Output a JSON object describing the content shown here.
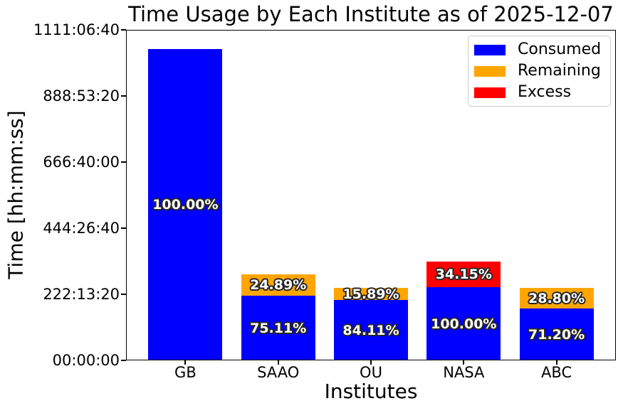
{
  "title": "Time Usage by Each Institute as of 2025-12-07",
  "axes": {
    "ylabel": "Time [hh:mm:ss]",
    "xlabel": "Institutes",
    "ylim_seconds": [
      0,
      4000000
    ],
    "yticks": [
      {
        "seconds": 0,
        "label": "00:00:00"
      },
      {
        "seconds": 800000,
        "label": "222:13:20"
      },
      {
        "seconds": 1600000,
        "label": "444:26:40"
      },
      {
        "seconds": 2400000,
        "label": "666:40:00"
      },
      {
        "seconds": 3200000,
        "label": "888:53:20"
      },
      {
        "seconds": 4000000,
        "label": "1111:06:40"
      }
    ]
  },
  "legend": {
    "position": "upper-right",
    "entries": [
      {
        "label": "Consumed",
        "color": "#0000ff"
      },
      {
        "label": "Remaining",
        "color": "#ffa500"
      },
      {
        "label": "Excess",
        "color": "#ff0000"
      }
    ]
  },
  "chart_data": {
    "type": "bar",
    "stacked": true,
    "grid": false,
    "categories": [
      "GB",
      "SAAO",
      "OU",
      "NASA",
      "ABC"
    ],
    "series": [
      {
        "name": "Consumed",
        "color": "#0000ff",
        "values_seconds": [
          3768000,
          782800,
          731200,
          886000,
          628000
        ],
        "percent_labels": [
          "100.00%",
          "75.11%",
          "84.11%",
          "100.00%",
          "71.20%"
        ]
      },
      {
        "name": "Remaining",
        "color": "#ffa500",
        "values_seconds": [
          0,
          258100,
          146200,
          0,
          249500
        ],
        "percent_labels": [
          "",
          "24.89%",
          "15.89%",
          "",
          "28.80%"
        ]
      },
      {
        "name": "Excess",
        "color": "#ff0000",
        "values_seconds": [
          0,
          0,
          0,
          309700,
          0
        ],
        "percent_labels": [
          "",
          "",
          "",
          "34.15%",
          ""
        ]
      }
    ],
    "title": "Time Usage by Each Institute as of 2025-12-07",
    "xlabel": "Institutes",
    "ylabel": "Time [hh:mm:ss]",
    "ylim": [
      0,
      4000000
    ],
    "ytick_labels": [
      "00:00:00",
      "222:13:20",
      "444:26:40",
      "666:40:00",
      "888:53:20",
      "1111:06:40"
    ],
    "legend_position": "upper-right"
  }
}
